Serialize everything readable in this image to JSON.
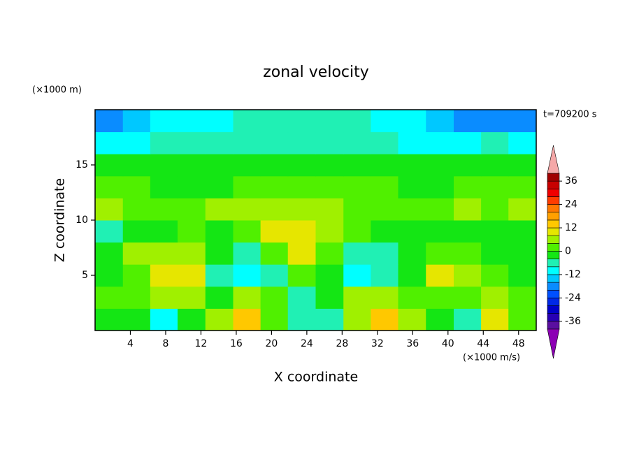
{
  "chart_data": {
    "type": "contour",
    "title": "zonal velocity",
    "y_unit_label": "(×1000 m)",
    "time_label": "t=709200 s",
    "x_unit_label": "(×1000 m/s)",
    "xlabel": "X coordinate",
    "ylabel": "Z coordinate",
    "xlim": [
      0,
      50
    ],
    "ylim": [
      0,
      20
    ],
    "xticks": [
      4,
      8,
      12,
      16,
      20,
      24,
      28,
      32,
      36,
      40,
      44,
      48
    ],
    "yticks": [
      5,
      10,
      15
    ],
    "x": [
      1.6,
      4.7,
      7.8,
      10.9,
      14.1,
      17.2,
      20.3,
      23.4,
      26.6,
      29.7,
      32.8,
      35.9,
      39.1,
      42.2,
      45.3,
      48.4
    ],
    "y": [
      1,
      3,
      5,
      7,
      9,
      11,
      13,
      15,
      17,
      19
    ],
    "z": [
      [
        -2,
        -4,
        -12,
        -4,
        4,
        14,
        2,
        -8,
        -8,
        6,
        12,
        4,
        -4,
        -8,
        8,
        2
      ],
      [
        0,
        2,
        4,
        4,
        -4,
        4,
        0,
        -6,
        -4,
        4,
        6,
        2,
        0,
        2,
        4,
        2
      ],
      [
        -4,
        2,
        10,
        8,
        -6,
        -10,
        -6,
        2,
        -2,
        -10,
        -8,
        -2,
        8,
        6,
        0,
        -2
      ],
      [
        -2,
        4,
        6,
        6,
        -4,
        -6,
        2,
        8,
        2,
        -6,
        -6,
        -2,
        2,
        2,
        -2,
        -4
      ],
      [
        -6,
        -4,
        -4,
        0,
        -2,
        0,
        8,
        10,
        4,
        0,
        -4,
        -4,
        -2,
        -4,
        -2,
        -4
      ],
      [
        4,
        2,
        2,
        2,
        4,
        4,
        6,
        4,
        4,
        2,
        2,
        2,
        2,
        4,
        2,
        4
      ],
      [
        2,
        0,
        -2,
        -4,
        -2,
        0,
        2,
        2,
        2,
        0,
        0,
        -2,
        -2,
        0,
        2,
        2
      ],
      [
        -2,
        -2,
        -4,
        -4,
        -4,
        -4,
        -2,
        -2,
        -2,
        -2,
        -4,
        -4,
        -4,
        -2,
        -2,
        -4
      ],
      [
        -10,
        -10,
        -8,
        -8,
        -8,
        -8,
        -8,
        -8,
        -6,
        -6,
        -8,
        -10,
        -10,
        -10,
        -8,
        -10
      ],
      [
        -20,
        -14,
        -12,
        -12,
        -10,
        -8,
        -8,
        -8,
        -8,
        -8,
        -10,
        -12,
        -16,
        -18,
        -20,
        -20
      ]
    ],
    "levels": [
      -40,
      -36,
      -32,
      -28,
      -24,
      -20,
      -16,
      -12,
      -8,
      -4,
      0,
      4,
      8,
      12,
      16,
      20,
      24,
      28,
      32,
      36,
      40
    ],
    "colors": [
      "#5a0fa0",
      "#2800b4",
      "#0000c8",
      "#0028e6",
      "#0050ff",
      "#0a8cff",
      "#00c8ff",
      "#00ffff",
      "#20f0b4",
      "#14e614",
      "#50f000",
      "#a0f000",
      "#e6e600",
      "#ffc800",
      "#ffa000",
      "#ff7800",
      "#ff3c00",
      "#f00000",
      "#c80000",
      "#a00000"
    ],
    "over_color": "#f5a8a8",
    "under_color": "#8c00b4",
    "cbar_ticks": [
      -36,
      -24,
      -12,
      0,
      12,
      24,
      36
    ]
  }
}
